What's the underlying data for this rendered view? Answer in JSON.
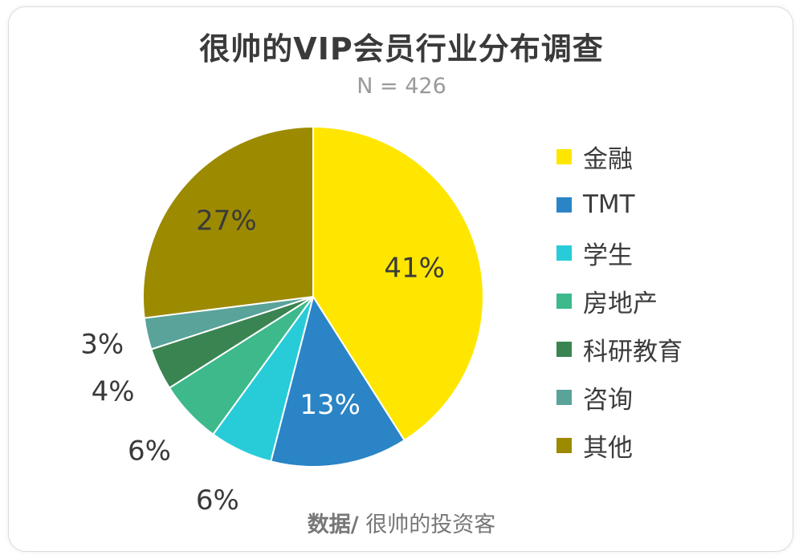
{
  "chart_data": {
    "type": "pie",
    "title": "很帅的VIP会员行业分布调查",
    "subtitle": "N = 426",
    "categories": [
      "金融",
      "TMT",
      "学生",
      "房地产",
      "科研教育",
      "咨询",
      "其他"
    ],
    "values": [
      41,
      13,
      6,
      6,
      4,
      3,
      27
    ],
    "labels": [
      "41%",
      "13%",
      "6%",
      "6%",
      "4%",
      "3%",
      "27%"
    ],
    "colors": [
      "#FFE600",
      "#2A84C6",
      "#28CCD8",
      "#3DB98C",
      "#3A8451",
      "#59A39A",
      "#9C8A00"
    ],
    "legend_position": "right",
    "source_prefix": "数据/",
    "source_text": " 很帅的投资客"
  }
}
